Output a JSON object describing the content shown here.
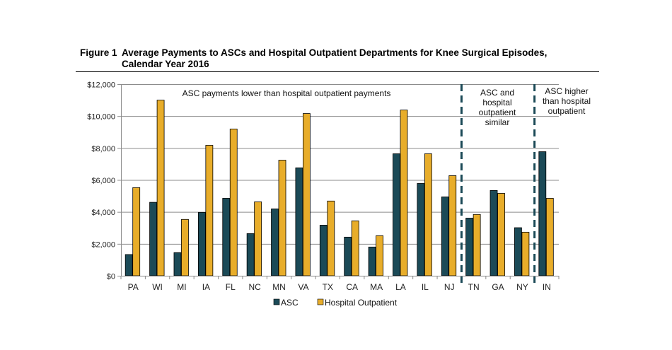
{
  "figure": {
    "label": "Figure 1",
    "title_line1": "Average Payments to ASCs and Hospital Outpatient Departments for Knee Surgical Episodes,",
    "title_line2": "Calendar Year 2016"
  },
  "chart_data": {
    "type": "bar",
    "title": "Average Payments to ASCs and Hospital Outpatient Departments for Knee Surgical Episodes, Calendar Year 2016",
    "xlabel": "",
    "ylabel": "",
    "ylim": [
      0,
      12000
    ],
    "yticks": [
      "$0",
      "$2,000",
      "$4,000",
      "$6,000",
      "$8,000",
      "$10,000",
      "$12,000"
    ],
    "ytick_values": [
      0,
      2000,
      4000,
      6000,
      8000,
      10000,
      12000
    ],
    "grid": true,
    "legend_position": "bottom",
    "categories": [
      "PA",
      "WI",
      "MI",
      "IA",
      "FL",
      "NC",
      "MN",
      "VA",
      "TX",
      "CA",
      "MA",
      "LA",
      "IL",
      "NJ",
      "TN",
      "GA",
      "NY",
      "IN"
    ],
    "series": [
      {
        "name": "ASC",
        "color": "#1b4a57",
        "values": [
          1330,
          4600,
          1450,
          3970,
          4850,
          2640,
          4190,
          6760,
          3170,
          2420,
          1800,
          7640,
          5780,
          4940,
          3610,
          5340,
          3010,
          7770
        ]
      },
      {
        "name": "Hospital Outpatient",
        "color": "#e8ad2a",
        "values": [
          5520,
          11000,
          3530,
          8170,
          9190,
          4630,
          7240,
          10160,
          4680,
          3440,
          2510,
          10380,
          7640,
          6270,
          3840,
          5160,
          2730,
          4850
        ]
      }
    ],
    "annotations": {
      "lower": "ASC payments lower than hospital outpatient payments",
      "similar": [
        "ASC and",
        "hospital",
        "outpatient",
        "similar"
      ],
      "higher": [
        "ASC higher",
        "than hospital",
        "outpatient"
      ]
    },
    "divider_color": "#1b4a57"
  }
}
